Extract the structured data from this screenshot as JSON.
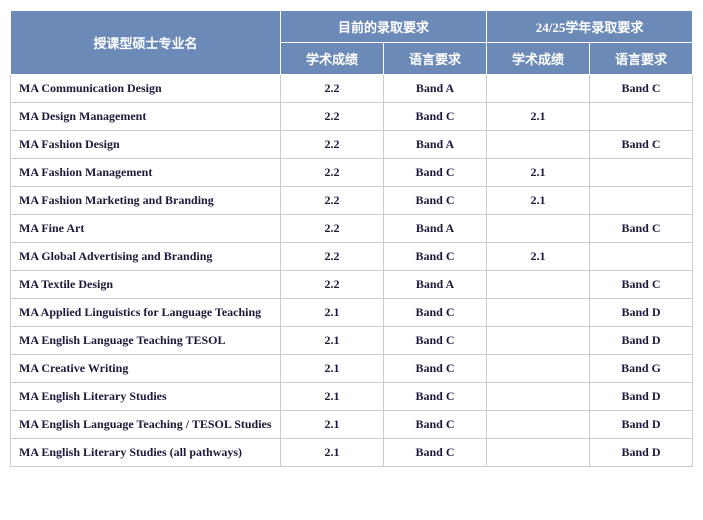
{
  "header": {
    "program_col": "授课型硕士专业名",
    "current_group": "目前的录取要求",
    "future_group": "24/25学年录取要求",
    "academic": "学术成绩",
    "language": "语言要求"
  },
  "rows": [
    {
      "program": "MA Communication Design",
      "cur_acad": "2.2",
      "cur_lang": "Band A",
      "fut_acad": "",
      "fut_lang": "Band C"
    },
    {
      "program": "MA Design Management",
      "cur_acad": "2.2",
      "cur_lang": "Band C",
      "fut_acad": "2.1",
      "fut_lang": ""
    },
    {
      "program": "MA Fashion Design",
      "cur_acad": "2.2",
      "cur_lang": "Band A",
      "fut_acad": "",
      "fut_lang": "Band C"
    },
    {
      "program": "MA Fashion Management",
      "cur_acad": "2.2",
      "cur_lang": "Band C",
      "fut_acad": "2.1",
      "fut_lang": ""
    },
    {
      "program": "MA Fashion Marketing and Branding",
      "cur_acad": "2.2",
      "cur_lang": "Band C",
      "fut_acad": "2.1",
      "fut_lang": ""
    },
    {
      "program": "MA Fine Art",
      "cur_acad": "2.2",
      "cur_lang": "Band A",
      "fut_acad": "",
      "fut_lang": "Band C"
    },
    {
      "program": "MA Global Advertising and Branding",
      "cur_acad": "2.2",
      "cur_lang": "Band C",
      "fut_acad": "2.1",
      "fut_lang": ""
    },
    {
      "program": "MA Textile Design",
      "cur_acad": "2.2",
      "cur_lang": "Band A",
      "fut_acad": "",
      "fut_lang": "Band C"
    },
    {
      "program": "MA Applied Linguistics for Language Teaching",
      "cur_acad": "2.1",
      "cur_lang": "Band C",
      "fut_acad": "",
      "fut_lang": "Band D"
    },
    {
      "program": "MA English Language Teaching TESOL",
      "cur_acad": "2.1",
      "cur_lang": "Band C",
      "fut_acad": "",
      "fut_lang": "Band D"
    },
    {
      "program": "MA Creative Writing",
      "cur_acad": "2.1",
      "cur_lang": "Band C",
      "fut_acad": "",
      "fut_lang": "Band G"
    },
    {
      "program": "MA English Literary Studies",
      "cur_acad": "2.1",
      "cur_lang": "Band C",
      "fut_acad": "",
      "fut_lang": "Band D"
    },
    {
      "program": "MA English Language Teaching / TESOL Studies",
      "cur_acad": "2.1",
      "cur_lang": "Band C",
      "fut_acad": "",
      "fut_lang": "Band D"
    },
    {
      "program": "MA English Literary Studies (all pathways)",
      "cur_acad": "2.1",
      "cur_lang": "Band C",
      "fut_acad": "",
      "fut_lang": "Band D"
    }
  ]
}
